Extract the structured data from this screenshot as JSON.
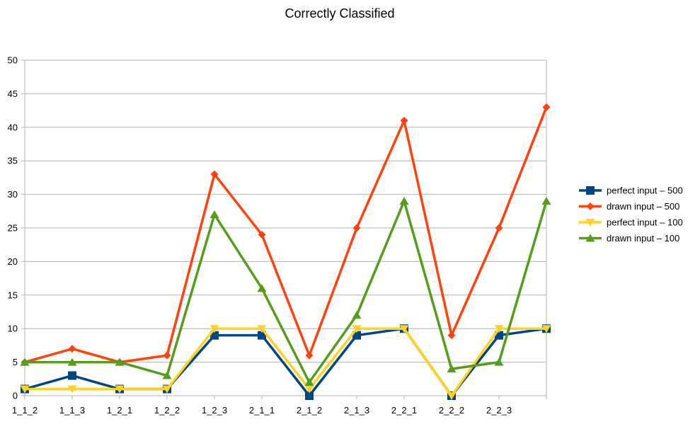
{
  "chart_data": {
    "type": "line",
    "title": "Correctly Classified",
    "xlabel": "",
    "ylabel": "",
    "ylim": [
      0,
      50
    ],
    "y_ticks": [
      0,
      5,
      10,
      15,
      20,
      25,
      30,
      35,
      40,
      45,
      50
    ],
    "grid": true,
    "legend_position": "right",
    "categories": [
      "1_1_2",
      "1_1_3",
      "1_2_1",
      "1_2_2",
      "1_2_3",
      "2_1_1",
      "2_1_2",
      "2_1_3",
      "2_2_1",
      "2_2_2",
      "2_2_3",
      ""
    ],
    "series": [
      {
        "name": "perfect input – 500",
        "color": "#004586",
        "marker": "square",
        "values": [
          1,
          3,
          1,
          1,
          9,
          9,
          0,
          9,
          10,
          0,
          9,
          10
        ]
      },
      {
        "name": "drawn input – 500",
        "color": "#ff420e",
        "marker": "diamond",
        "values": [
          5,
          7,
          5,
          6,
          33,
          24,
          6,
          25,
          41,
          9,
          25,
          43
        ]
      },
      {
        "name": "perfect input – 100",
        "color": "#ffd320",
        "marker": "triangle-down",
        "values": [
          1,
          1,
          1,
          1,
          10,
          10,
          1,
          10,
          10,
          0,
          10,
          10
        ]
      },
      {
        "name": "drawn input – 100",
        "color": "#579d1c",
        "marker": "triangle-up",
        "values": [
          5,
          5,
          5,
          3,
          27,
          16,
          2,
          12,
          29,
          4,
          5,
          29
        ]
      }
    ]
  }
}
